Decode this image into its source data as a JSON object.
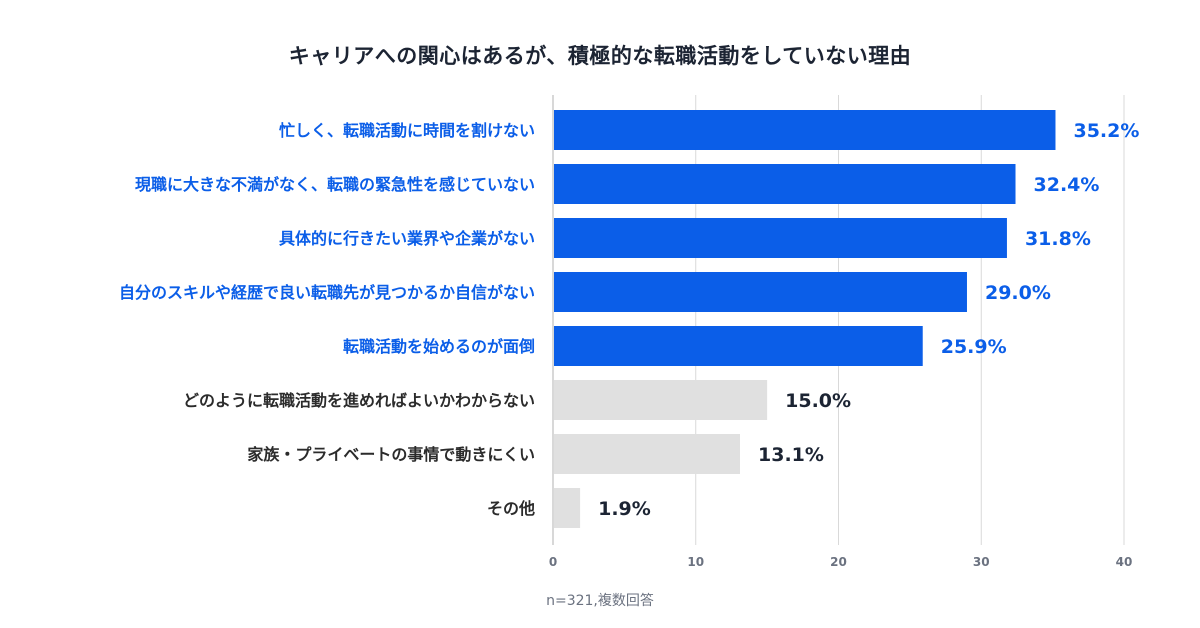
{
  "chart_data": {
    "type": "bar",
    "orientation": "horizontal",
    "title": "キャリアへの関心はあるが、積極的な転職活動をしていない理由",
    "categories": [
      "忙しく、転職活動に時間を割けない",
      "現職に大きな不満がなく、転職の緊急性を感じていない",
      "具体的に行きたい業界や企業がない",
      "自分のスキルや経歴で良い転職先が見つかるか自信がない",
      "転職活動を始めるのが面倒",
      "どのように転職活動を進めればよいかわからない",
      "家族・プライベートの事情で動きにくい",
      "その他"
    ],
    "values": [
      35.2,
      32.4,
      31.8,
      29.0,
      25.9,
      15.0,
      13.1,
      1.9
    ],
    "value_labels": [
      "35.2%",
      "32.4%",
      "31.8%",
      "29.0%",
      "25.9%",
      "15.0%",
      "13.1%",
      "1.9%"
    ],
    "highlighted": [
      true,
      true,
      true,
      true,
      true,
      false,
      false,
      false
    ],
    "xlim": [
      0,
      40
    ],
    "xticks": [
      "0",
      "10",
      "20",
      "30",
      "40"
    ],
    "grid": true,
    "note": "n=321,複数回答",
    "colors": {
      "highlight_bar": "#0b5ee8",
      "highlight_text": "#0b5ee8",
      "other_bar": "#e0e0e0",
      "other_text": "#2b2b2b",
      "value_text_other": "#1c2433",
      "grid": "#d9d9d9",
      "axis": "#bdbdbd"
    }
  }
}
